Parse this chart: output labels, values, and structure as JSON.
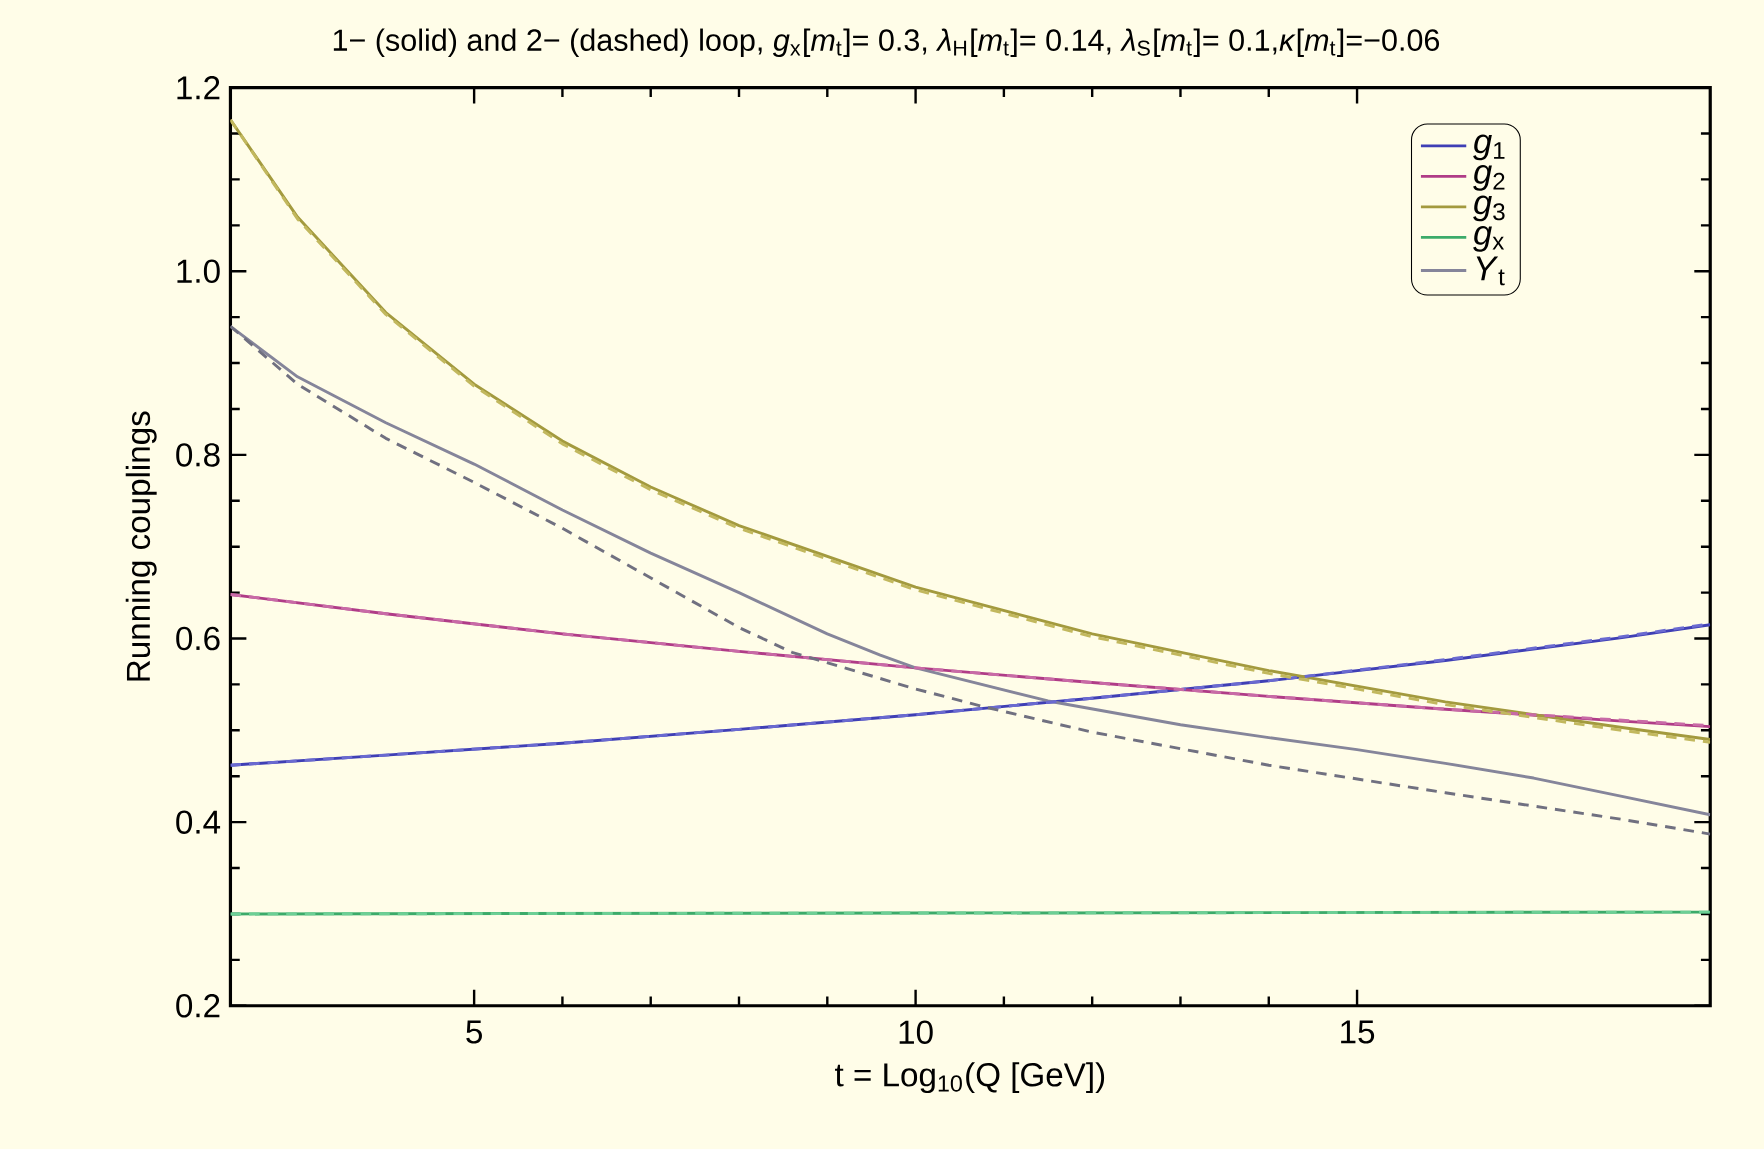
{
  "chart_data": {
    "type": "line",
    "title": "1− (solid) and 2− (dashed) loop, *g*$_{x}$[*m*$_{t}$]= 0.3, *λ*$_{H}$[*m*$_{t}$]= 0.14, *λ*$_{S}$[*m*$_{t}$]= 0.1,*κ*[*m*$_{t}$]=−0.06",
    "xlabel": "t = Log$_{10}$(Q [GeV])",
    "ylabel": "Running couplings",
    "x": [
      2.24,
      4,
      6,
      8,
      10,
      12,
      14,
      16,
      18,
      19
    ],
    "series": [
      {
        "name": "*g*$_{1}$",
        "color": "#3f3fb5",
        "values": [
          0.462,
          0.473,
          0.486,
          0.501,
          0.517,
          0.535,
          0.554,
          0.576,
          0.601,
          0.615
        ]
      },
      {
        "name": "*g*$_{2}$",
        "color": "#b03c87",
        "values": [
          0.648,
          0.627,
          0.605,
          0.586,
          0.568,
          0.552,
          0.537,
          0.523,
          0.51,
          0.504
        ]
      },
      {
        "name": "*g*$_{3}$",
        "color": "#a39a3e",
        "x": [
          2.24,
          3,
          4,
          5,
          6,
          7,
          8,
          10,
          12,
          14,
          16,
          18,
          19
        ],
        "values": [
          1.165,
          1.059,
          0.955,
          0.877,
          0.815,
          0.765,
          0.723,
          0.656,
          0.605,
          0.565,
          0.531,
          0.503,
          0.49
        ]
      },
      {
        "name": "*g*$_{x}$",
        "color": "#3cab6a",
        "x": [
          2.24,
          10,
          19
        ],
        "values": [
          0.3,
          0.301,
          0.302
        ]
      },
      {
        "name": "*Y*$_{t}$",
        "color": "#85859a",
        "x": [
          2.24,
          3,
          4,
          5,
          6,
          7,
          8,
          9,
          9.6,
          10,
          11.5,
          13,
          14,
          15,
          16,
          17,
          18,
          19
        ],
        "values": [
          0.94,
          0.885,
          0.835,
          0.79,
          0.74,
          0.693,
          0.65,
          0.605,
          0.582,
          0.568,
          0.532,
          0.506,
          0.492,
          0.479,
          0.464,
          0.448,
          0.428,
          0.408
        ]
      },
      {
        "color": "#6a6ad0",
        "line_style": "dashed",
        "values": [
          0.462,
          0.473,
          0.486,
          0.501,
          0.517,
          0.535,
          0.554,
          0.577,
          0.602,
          0.616
        ]
      },
      {
        "color": "#c86aa6",
        "line_style": "dashed",
        "values": [
          0.648,
          0.627,
          0.605,
          0.586,
          0.568,
          0.552,
          0.537,
          0.523,
          0.511,
          0.505
        ]
      },
      {
        "color": "#c2b85e",
        "line_style": "dashed",
        "x": [
          2.24,
          3,
          4,
          5,
          6,
          7,
          8,
          10,
          12,
          14,
          16,
          18,
          19
        ],
        "values": [
          1.165,
          1.057,
          0.953,
          0.875,
          0.812,
          0.762,
          0.72,
          0.653,
          0.602,
          0.562,
          0.528,
          0.5,
          0.487
        ]
      },
      {
        "color": "#6ccf95",
        "line_style": "dashed",
        "x": [
          2.24,
          10,
          19
        ],
        "values": [
          0.3,
          0.301,
          0.302
        ]
      },
      {
        "color": "#707080",
        "line_style": "dashed",
        "x": [
          2.24,
          3,
          4,
          5,
          6,
          7,
          8,
          8.6,
          10,
          10.8,
          12,
          14,
          16,
          18,
          19
        ],
        "values": [
          0.94,
          0.877,
          0.818,
          0.77,
          0.72,
          0.666,
          0.612,
          0.585,
          0.545,
          0.525,
          0.498,
          0.462,
          0.432,
          0.403,
          0.387
        ]
      }
    ],
    "xlim": [
      2.24,
      19
    ],
    "ylim": [
      0.2,
      1.2
    ],
    "xticks": [
      5,
      10,
      15
    ],
    "yticks": [
      {
        "value": 0.2,
        "label": "0.2"
      },
      {
        "value": 0.4,
        "label": "0.4"
      },
      {
        "value": 0.6,
        "label": "0.6"
      },
      {
        "value": 0.8,
        "label": "0.8"
      },
      {
        "value": 1.0,
        "label": "1.0"
      },
      {
        "value": 1.2,
        "label": "1.2"
      }
    ],
    "line_style": "solid",
    "legend": "top right",
    "grid": false
  }
}
